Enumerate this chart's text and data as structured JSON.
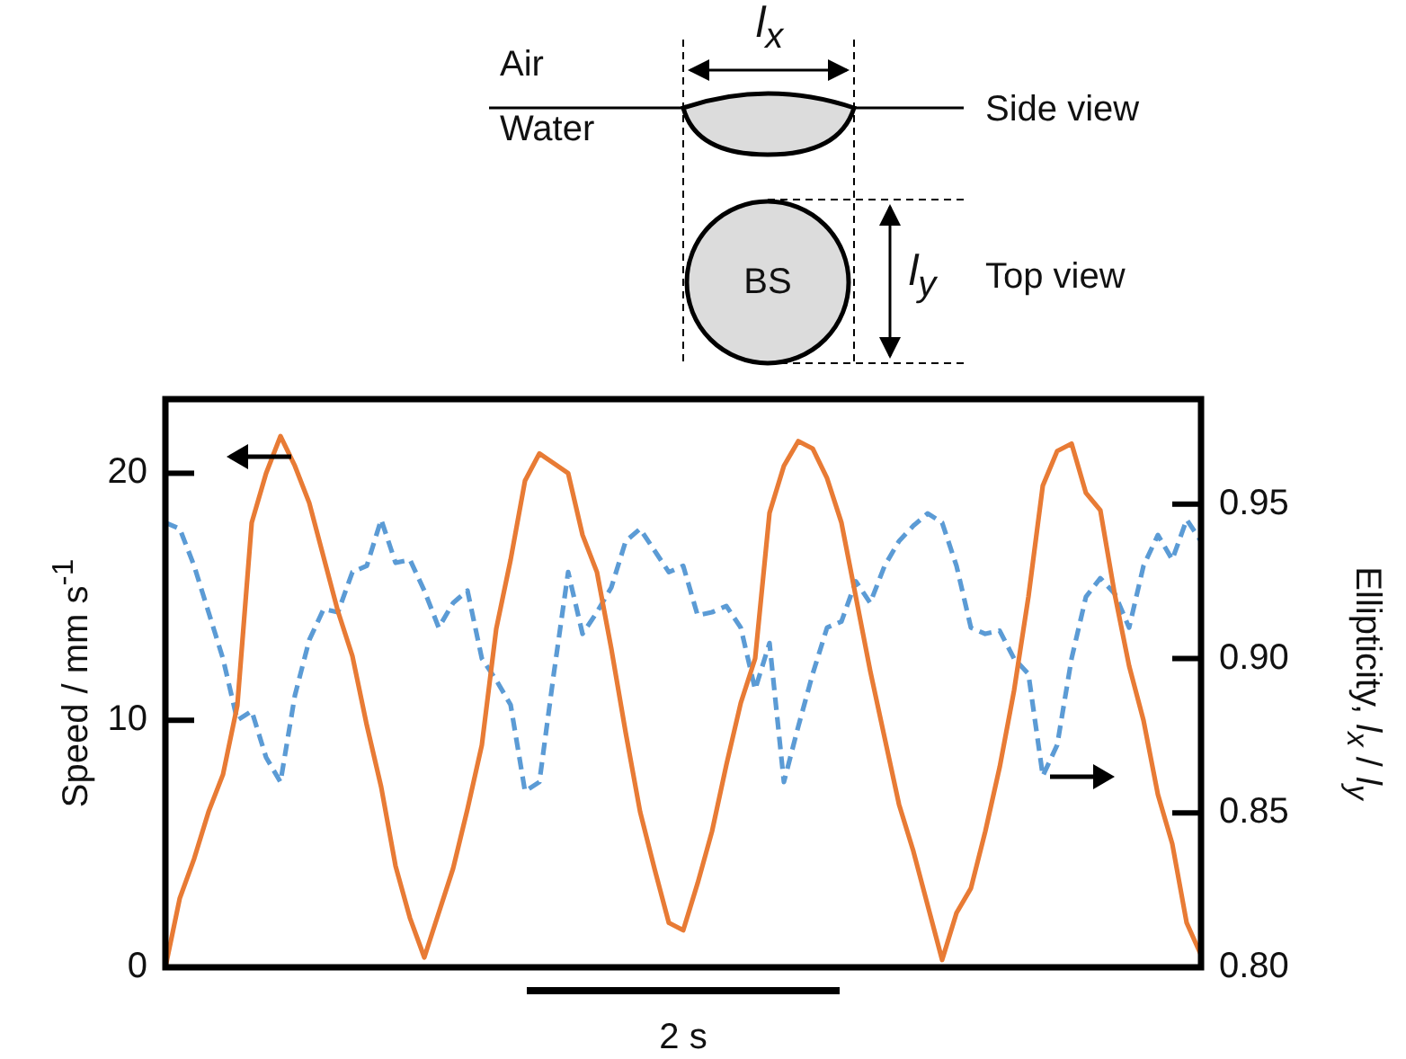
{
  "chart_data": {
    "type": "line",
    "categories": [
      null,
      null,
      null,
      null,
      null,
      null,
      null,
      null,
      null,
      null,
      null,
      null,
      null,
      null,
      null,
      null,
      null,
      null,
      null,
      null,
      null,
      null,
      null,
      null,
      null,
      null,
      null,
      null,
      null,
      null,
      null,
      null,
      null,
      null,
      null,
      null,
      null,
      null,
      null,
      null,
      null,
      null,
      null,
      null,
      null,
      null,
      null,
      null,
      null,
      null,
      null,
      null,
      null,
      null,
      null,
      null,
      null,
      null,
      null,
      null,
      null,
      null,
      null,
      null,
      null,
      null,
      null,
      null,
      null,
      null,
      null,
      null,
      null
    ],
    "ylabel": "Speed / mm s$^{-1}$",
    "y2label": "Ellipticity, l$_{x}$ / l$_{y}$",
    "annotations": [
      "l$_{x}$",
      "Air",
      "Water",
      "Side view",
      "BS",
      "l$_{y}$",
      "Top view",
      "2 s"
    ],
    "ylim": [
      0,
      23
    ],
    "yticks": [
      0,
      10,
      20
    ],
    "y2lim": [
      0.8,
      0.984
    ],
    "y2ticks": [
      {
        "value": 0.8,
        "label": "0.80"
      },
      0.85,
      {
        "value": 0.9,
        "label": "0.90"
      },
      0.95
    ],
    "marker": "none",
    "series": [
      {
        "color": "#e87b35",
        "line_style": "solid",
        "values": [
          0,
          2.8,
          4.4,
          6.3,
          7.8,
          10.6,
          18,
          20,
          21.5,
          20.3,
          18.8,
          16.6,
          14.4,
          12.6,
          9.8,
          7.3,
          4.1,
          2,
          0.4,
          2.2,
          4,
          6.4,
          9,
          13.7,
          16.5,
          19.7,
          20.8,
          20.4,
          20,
          17.5,
          16,
          12.9,
          9.5,
          6.3,
          4,
          1.8,
          1.5,
          3.4,
          5.5,
          8.2,
          10.7,
          12.5,
          18.4,
          20.3,
          21.3,
          21,
          19.8,
          18,
          15,
          12,
          9.3,
          6.6,
          4.7,
          2.5,
          0.3,
          2.2,
          3.2,
          5.5,
          8.1,
          11.2,
          15,
          19.5,
          20.9,
          21.2,
          19.2,
          18.5,
          15.1,
          12.2,
          10,
          7,
          5,
          1.8,
          0.5
        ]
      },
      {
        "color": "#5b9bd5",
        "line_style": "dashed",
        "axis": "y2",
        "values": [
          0.944,
          0.942,
          0.93,
          0.915,
          0.9,
          0.88,
          0.883,
          0.868,
          0.86,
          0.888,
          0.906,
          0.916,
          0.915,
          0.928,
          0.93,
          0.945,
          0.931,
          0.932,
          0.922,
          0.91,
          0.918,
          0.922,
          0.9,
          0.893,
          0.885,
          0.857,
          0.86,
          0.895,
          0.928,
          0.908,
          0.915,
          0.923,
          0.938,
          0.942,
          0.935,
          0.928,
          0.93,
          0.914,
          0.915,
          0.917,
          0.91,
          0.89,
          0.905,
          0.86,
          0.878,
          0.895,
          0.91,
          0.912,
          0.925,
          0.918,
          0.93,
          0.938,
          0.943,
          0.947,
          0.944,
          0.93,
          0.91,
          0.908,
          0.909,
          0.9,
          0.895,
          0.862,
          0.872,
          0.9,
          0.92,
          0.926,
          0.921,
          0.91,
          0.93,
          0.94,
          0.932,
          0.945,
          0.938
        ]
      }
    ]
  }
}
